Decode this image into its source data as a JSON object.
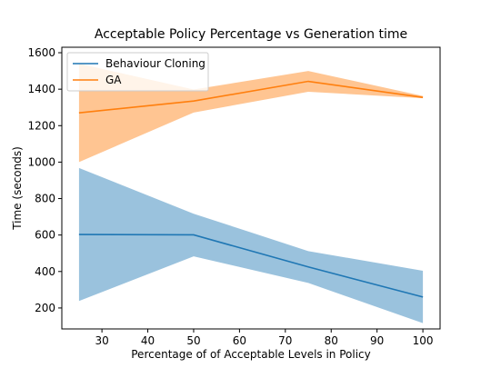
{
  "chart_data": {
    "type": "line",
    "title": "Acceptable Policy Percentage vs Generation time",
    "xlabel": "Percentage of of Acceptable Levels in Policy",
    "ylabel": "Time (seconds)",
    "xlim": [
      21.25,
      103.75
    ],
    "ylim": [
      85,
      1630
    ],
    "xticks": [
      30,
      40,
      50,
      60,
      70,
      80,
      90,
      100
    ],
    "yticks": [
      200,
      400,
      600,
      800,
      1000,
      1200,
      1400,
      1600
    ],
    "grid": false,
    "legend_position": "top-left",
    "x": [
      25,
      50,
      75,
      100
    ],
    "series": [
      {
        "name": "Behaviour Cloning",
        "color": "#1f77b4",
        "band_color": "#1f77b4",
        "values": [
          603,
          601,
          425,
          260
        ],
        "lower": [
          238,
          483,
          337,
          117
        ],
        "upper": [
          968,
          717,
          512,
          404
        ]
      },
      {
        "name": "GA",
        "color": "#ff7f0e",
        "band_color": "#ff7f0e",
        "values": [
          1270,
          1335,
          1443,
          1355
        ],
        "lower": [
          1000,
          1272,
          1386,
          1350
        ],
        "upper": [
          1540,
          1398,
          1500,
          1363
        ]
      }
    ]
  }
}
